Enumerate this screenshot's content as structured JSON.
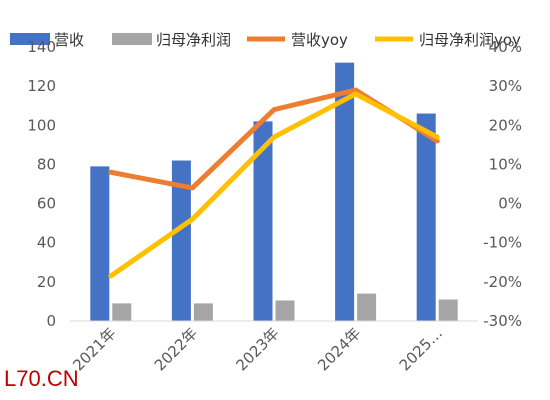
{
  "watermark": "L70.CN",
  "chart_data": {
    "type": "bar+line",
    "categories": [
      "2021年",
      "2022年",
      "2023年",
      "2024年",
      "2025…"
    ],
    "y_left": {
      "ticks": [
        0,
        20,
        40,
        60,
        80,
        100,
        120,
        140
      ],
      "ylim": [
        0,
        140
      ]
    },
    "y_right": {
      "ticks": [
        "-30%",
        "-20%",
        "-10%",
        "0%",
        "10%",
        "20%",
        "30%",
        "40%"
      ],
      "ylim": [
        -30,
        40
      ]
    },
    "legend_position": "top",
    "grid": false,
    "series": [
      {
        "name": "营收",
        "type": "bar",
        "axis": "left",
        "color": "#4472C4",
        "values": [
          79,
          82,
          102,
          132,
          106
        ]
      },
      {
        "name": "归母净利润",
        "type": "bar",
        "axis": "left",
        "color": "#A5A5A5",
        "values": [
          9,
          9,
          10.5,
          14,
          11
        ]
      },
      {
        "name": "营收yoy",
        "type": "line",
        "axis": "right",
        "color": "#ED7D31",
        "values": [
          8,
          4,
          24,
          29,
          16
        ]
      },
      {
        "name": "归母净利润yoy",
        "type": "line",
        "axis": "right",
        "color": "#FFC000",
        "values": [
          -18.5,
          -4,
          17,
          28,
          17
        ]
      }
    ]
  }
}
